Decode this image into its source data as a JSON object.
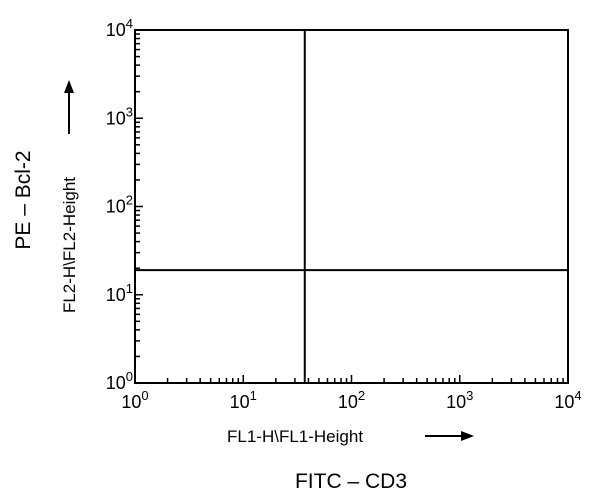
{
  "chart_data": {
    "type": "scatter",
    "x_scale": "log",
    "y_scale": "log",
    "xlim": [
      1,
      10000
    ],
    "ylim": [
      1,
      10000
    ],
    "x_ticks": [
      {
        "base": "10",
        "exp": "0"
      },
      {
        "base": "10",
        "exp": "1"
      },
      {
        "base": "10",
        "exp": "2"
      },
      {
        "base": "10",
        "exp": "3"
      },
      {
        "base": "10",
        "exp": "4"
      }
    ],
    "y_ticks": [
      {
        "base": "10",
        "exp": "0"
      },
      {
        "base": "10",
        "exp": "1"
      },
      {
        "base": "10",
        "exp": "2"
      },
      {
        "base": "10",
        "exp": "3"
      },
      {
        "base": "10",
        "exp": "4"
      }
    ],
    "xlabel": "FL1-H\\FL1-Height",
    "ylabel": "FL2-H\\FL2-Height",
    "outer_xlabel": "FITC – CD3",
    "outer_ylabel": "PE – Bcl-2",
    "quadrant_x": 37,
    "quadrant_y": 19,
    "points": [],
    "grid": false
  },
  "colors": {
    "axes": "#000000",
    "background": "#ffffff"
  }
}
